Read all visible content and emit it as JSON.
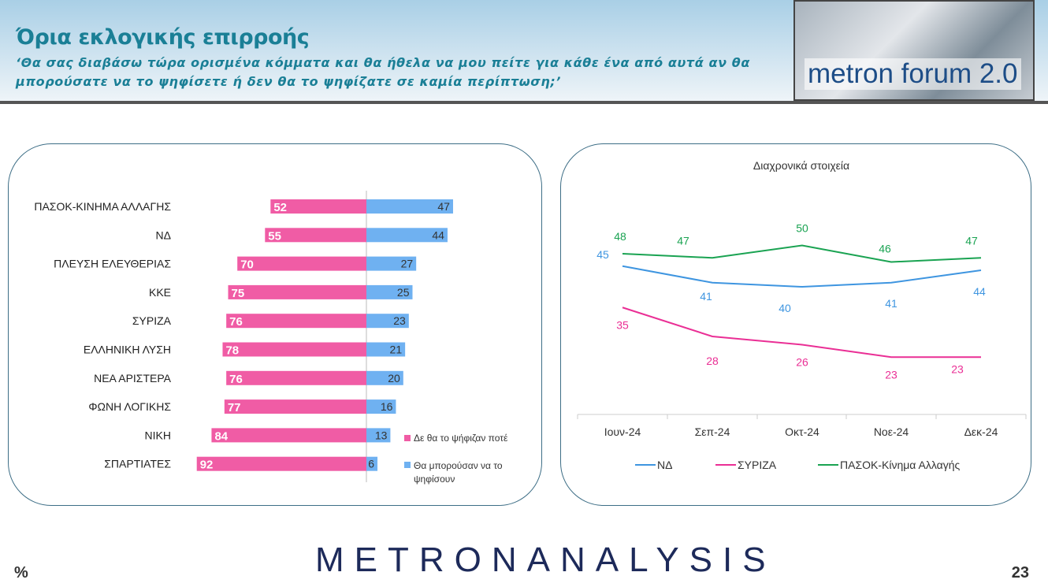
{
  "header": {
    "title": "Όρια εκλογικής επιρροής",
    "subtitle_line1": "‘Θα σας διαβάσω τώρα ορισμένα κόμματα και θα ήθελα να μου πείτε για κάθε ένα από αυτά αν θα",
    "subtitle_line2": "μπορούσατε να το ψηφίσετε ή δεν θα το ψηφίζατε σε καμία περίπτωση;’",
    "logo_text": "metron forum 2.0"
  },
  "footer": {
    "logo": "METRONANALYSIS",
    "unit": "%",
    "page": "23"
  },
  "colors": {
    "never": "#f05ca5",
    "could": "#6fb1f1",
    "nd": "#3e95e0",
    "syriza": "#ea2f95",
    "pasok": "#1aa352"
  },
  "chart_data": [
    {
      "type": "bar",
      "orientation": "diverging-horizontal",
      "categories": [
        "ΠΑΣΟΚ-ΚΙΝΗΜΑ ΑΛΛΑΓΗΣ",
        "ΝΔ",
        "ΠΛΕΥΣΗ ΕΛΕΥΘΕΡΙΑΣ",
        "ΚΚΕ",
        "ΣΥΡΙΖΑ",
        "ΕΛΛΗΝΙΚΗ ΛΥΣΗ",
        "ΝΕΑ ΑΡΙΣΤΕΡΑ",
        "ΦΩΝΗ ΛΟΓΙΚΗΣ",
        "ΝΙΚΗ",
        "ΣΠΑΡΤΙΑΤΕΣ"
      ],
      "series": [
        {
          "name": "Δε θα το ψήφιζαν ποτέ",
          "values": [
            52,
            55,
            70,
            75,
            76,
            78,
            76,
            77,
            84,
            92
          ]
        },
        {
          "name": "Θα μπορούσαν να το ψηφίσουν",
          "values": [
            47,
            44,
            27,
            25,
            23,
            21,
            20,
            16,
            13,
            6
          ]
        }
      ]
    },
    {
      "type": "line",
      "title": "Διαχρονικά στοιχεία",
      "x": [
        "Ιουν-24",
        "Σεπ-24",
        "Οκτ-24",
        "Νοε-24",
        "Δεκ-24"
      ],
      "ylim": [
        9,
        60
      ],
      "legend": "bottom",
      "series": [
        {
          "name": "ΝΔ",
          "values": [
            45,
            41,
            40,
            41,
            44
          ]
        },
        {
          "name": "ΣΥΡΙΖΑ",
          "values": [
            35,
            28,
            26,
            23,
            23
          ]
        },
        {
          "name": "ΠΑΣΟΚ-Κίνημα Αλλαγής",
          "values": [
            48,
            47,
            50,
            46,
            47
          ]
        }
      ]
    }
  ]
}
